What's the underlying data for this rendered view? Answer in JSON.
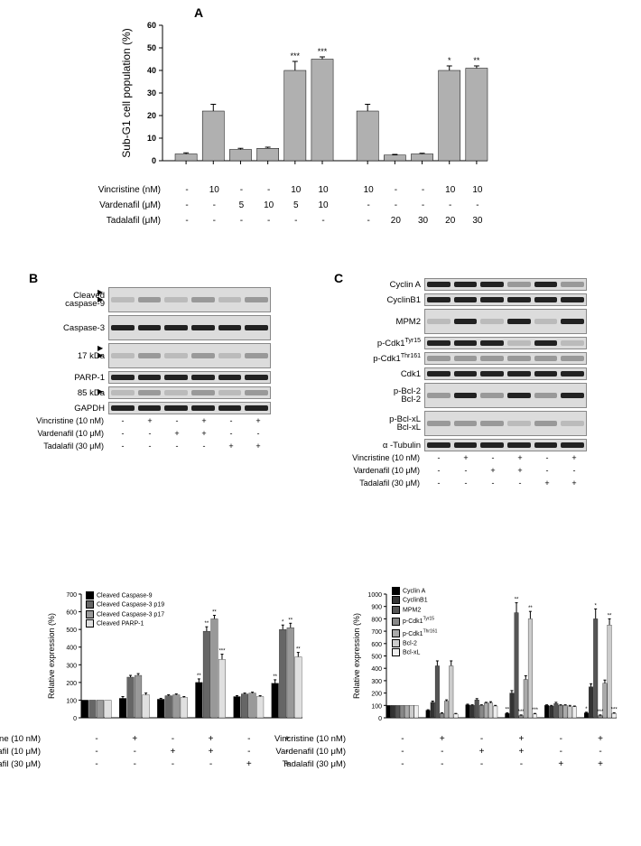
{
  "panelA": {
    "letter": "A",
    "chart": {
      "type": "bar",
      "ylabel": "Sub-G1 cell population (%)",
      "ylim": [
        0,
        60
      ],
      "ytick_step": 10,
      "bar_color": "#b0b0b0",
      "bar_border": "#000000",
      "background_color": "#ffffff",
      "label_fontsize": 12,
      "tick_fontsize": 10,
      "values": [
        3,
        22,
        5,
        5.5,
        40,
        45,
        22,
        2.5,
        3,
        40,
        41
      ],
      "errors": [
        0.5,
        3,
        0.5,
        0.5,
        4,
        1,
        3,
        0.3,
        0.3,
        2,
        1
      ],
      "significance": [
        "",
        "",
        "",
        "",
        "***",
        "***",
        "",
        "",
        "",
        "*",
        "**"
      ],
      "group_gap_after_index": 5
    },
    "treatments": {
      "rows": [
        {
          "label": "Vincristine (nM)",
          "values": [
            "-",
            "10",
            "-",
            "-",
            "10",
            "10",
            "10",
            "-",
            "-",
            "10",
            "10"
          ]
        },
        {
          "label": "Vardenafil (μM)",
          "values": [
            "-",
            "-",
            "5",
            "10",
            "5",
            "10",
            "-",
            "-",
            "-",
            "-",
            "-"
          ]
        },
        {
          "label": "Tadalafil (μM)",
          "values": [
            "-",
            "-",
            "-",
            "-",
            "-",
            "-",
            "-",
            "20",
            "30",
            "20",
            "30"
          ]
        }
      ]
    }
  },
  "panelB": {
    "letter": "B",
    "blot": {
      "labels_left": [
        "Cleaved caspase-9",
        "Caspase-3",
        "17 kDa",
        "PARP-1",
        "85 kDa",
        "GAPDH"
      ],
      "rows": [
        {
          "label": "Cleaved\ncaspase-9",
          "arrows": 2,
          "height": "tall",
          "bands": [
            "faint",
            "light",
            "faint",
            "light",
            "faint",
            "light"
          ]
        },
        {
          "label": "Caspase-3",
          "arrows": 0,
          "height": "tall",
          "bands": [
            "dark",
            "dark",
            "dark",
            "dark",
            "dark",
            "dark"
          ]
        },
        {
          "label": "17 kDa",
          "arrows": 2,
          "height": "tall",
          "bands": [
            "faint",
            "light",
            "faint",
            "light",
            "faint",
            "light"
          ]
        },
        {
          "label": "PARP-1",
          "arrows": 0,
          "height": "",
          "bands": [
            "dark",
            "dark",
            "dark",
            "dark",
            "dark",
            "dark"
          ]
        },
        {
          "label": "85 kDa",
          "arrows": 1,
          "height": "",
          "bands": [
            "faint",
            "light",
            "faint",
            "light",
            "faint",
            "light"
          ]
        },
        {
          "label": "GAPDH",
          "arrows": 0,
          "height": "",
          "bands": [
            "dark",
            "dark",
            "dark",
            "dark",
            "dark",
            "dark"
          ]
        }
      ],
      "treatments": [
        {
          "label": "Vincristine (10 nM)",
          "values": [
            "-",
            "+",
            "-",
            "+",
            "-",
            "+"
          ]
        },
        {
          "label": "Vardenafil (10 μM)",
          "values": [
            "-",
            "-",
            "+",
            "+",
            "-",
            "-"
          ]
        },
        {
          "label": "Tadalafil (30 μM)",
          "values": [
            "-",
            "-",
            "-",
            "-",
            "+",
            "+"
          ]
        }
      ]
    },
    "chart": {
      "type": "bar",
      "ylabel": "Relative expression (%)",
      "ylim": [
        0,
        700
      ],
      "ytick_step": 100,
      "legend": [
        {
          "name": "Cleaved Caspase-9",
          "color": "#000000"
        },
        {
          "name": "Cleaved Caspase-3 p19",
          "color": "#666666"
        },
        {
          "name": "Cleaved Caspase-3 p17",
          "color": "#999999"
        },
        {
          "name": "Cleaved PARP-1",
          "color": "#e0e0e0"
        }
      ],
      "groups": 6,
      "series_count": 4,
      "data": [
        [
          100,
          100,
          100,
          100
        ],
        [
          110,
          230,
          240,
          130
        ],
        [
          105,
          125,
          130,
          115
        ],
        [
          200,
          490,
          560,
          330
        ],
        [
          120,
          135,
          140,
          120
        ],
        [
          195,
          500,
          510,
          345
        ]
      ],
      "errors_data": [
        [
          0,
          0,
          0,
          0
        ],
        [
          10,
          10,
          10,
          10
        ],
        [
          5,
          5,
          5,
          5
        ],
        [
          20,
          25,
          20,
          30
        ],
        [
          5,
          5,
          5,
          5
        ],
        [
          20,
          25,
          25,
          25
        ]
      ],
      "significance_data": [
        [
          "",
          "",
          "",
          ""
        ],
        [
          "",
          "",
          "",
          ""
        ],
        [
          "",
          "",
          "",
          ""
        ],
        [
          "**",
          "**",
          "**",
          "***"
        ],
        [
          "",
          "",
          "",
          ""
        ],
        [
          "**",
          "*",
          "**",
          "**"
        ]
      ]
    }
  },
  "panelC": {
    "letter": "C",
    "blot": {
      "rows": [
        {
          "label": "Cyclin A",
          "height": "",
          "bands": [
            "dark",
            "dark",
            "dark",
            "light",
            "dark",
            "light"
          ]
        },
        {
          "label": "CyclinB1",
          "height": "",
          "bands": [
            "dark",
            "dark",
            "dark",
            "dark",
            "dark",
            "dark"
          ]
        },
        {
          "label": "MPM2",
          "height": "tall",
          "bands": [
            "faint",
            "dark",
            "faint",
            "dark",
            "faint",
            "dark"
          ]
        },
        {
          "label": "p-Cdk1^Tyr15",
          "height": "",
          "bands": [
            "dark",
            "dark",
            "dark",
            "faint",
            "dark",
            "faint"
          ]
        },
        {
          "label": "p-Cdk1^Thr161",
          "height": "",
          "bands": [
            "light",
            "light",
            "light",
            "light",
            "light",
            "light"
          ]
        },
        {
          "label": "Cdk1",
          "height": "",
          "bands": [
            "dark",
            "dark",
            "dark",
            "dark",
            "dark",
            "dark"
          ]
        },
        {
          "label": "p-Bcl-2 / Bcl-2",
          "height": "tall",
          "bands": [
            "light",
            "dark",
            "light",
            "dark",
            "light",
            "dark"
          ]
        },
        {
          "label": "p-Bcl-xL / Bcl-xL",
          "height": "tall",
          "bands": [
            "light",
            "light",
            "light",
            "faint",
            "light",
            "faint"
          ]
        },
        {
          "label": "α -Tubulin",
          "height": "",
          "bands": [
            "dark",
            "dark",
            "dark",
            "dark",
            "dark",
            "dark"
          ]
        }
      ],
      "treatments": [
        {
          "label": "Vincristine (10 nM)",
          "values": [
            "-",
            "+",
            "-",
            "+",
            "-",
            "+"
          ]
        },
        {
          "label": "Vardenafil (10 μM)",
          "values": [
            "-",
            "-",
            "+",
            "+",
            "-",
            "-"
          ]
        },
        {
          "label": "Tadalafil (30 μM)",
          "values": [
            "-",
            "-",
            "-",
            "-",
            "+",
            "+"
          ]
        }
      ]
    },
    "chart": {
      "type": "bar",
      "ylabel": "Relative expression (%)",
      "ylim": [
        0,
        1000
      ],
      "ytick_step": 100,
      "legend": [
        {
          "name": "Cyclin A",
          "color": "#000000"
        },
        {
          "name": "CyclinB1",
          "color": "#333333"
        },
        {
          "name": "MPM2",
          "color": "#555555"
        },
        {
          "name": "p-Cdk1^Tyr15",
          "color": "#888888"
        },
        {
          "name": "p-Cdk1^Thr161",
          "color": "#aaaaaa"
        },
        {
          "name": "Bcl-2",
          "color": "#cccccc"
        },
        {
          "name": "Bcl-xL",
          "color": "#eeeeee"
        }
      ],
      "groups": 6,
      "series_count": 7,
      "data": [
        [
          100,
          100,
          100,
          100,
          100,
          100,
          100
        ],
        [
          60,
          125,
          420,
          35,
          135,
          420,
          30
        ],
        [
          105,
          100,
          145,
          100,
          120,
          120,
          95
        ],
        [
          35,
          200,
          850,
          18,
          310,
          800,
          30
        ],
        [
          100,
          95,
          115,
          100,
          100,
          90,
          90
        ],
        [
          40,
          250,
          800,
          18,
          280,
          750,
          35
        ]
      ],
      "errors_data": [
        [
          0,
          0,
          0,
          0,
          0,
          0,
          0
        ],
        [
          5,
          10,
          40,
          5,
          10,
          40,
          5
        ],
        [
          5,
          5,
          10,
          5,
          5,
          10,
          5
        ],
        [
          5,
          20,
          80,
          5,
          30,
          60,
          5
        ],
        [
          5,
          5,
          10,
          5,
          5,
          10,
          5
        ],
        [
          5,
          25,
          80,
          5,
          25,
          50,
          5
        ]
      ],
      "significance_data": [
        [
          "",
          "",
          "",
          "",
          "",
          "",
          ""
        ],
        [
          "",
          "",
          "",
          "",
          "",
          "",
          ""
        ],
        [
          "",
          "",
          "",
          "",
          "",
          "",
          ""
        ],
        [
          "**",
          "",
          "**",
          "***",
          "",
          "**",
          "***"
        ],
        [
          "",
          "",
          "",
          "",
          "",
          "",
          ""
        ],
        [
          "*",
          "",
          "*",
          "***",
          "",
          "**",
          "***"
        ]
      ]
    }
  },
  "shared_treatments_bottom": [
    {
      "label": "Vincristine (10 nM)",
      "values": [
        "-",
        "+",
        "-",
        "+",
        "-",
        "+"
      ]
    },
    {
      "label": "Vardenafil (10 μM)",
      "values": [
        "-",
        "-",
        "+",
        "+",
        "-",
        "-"
      ]
    },
    {
      "label": "Tadalafil (30 μM)",
      "values": [
        "-",
        "-",
        "-",
        "-",
        "+",
        "+"
      ]
    }
  ]
}
